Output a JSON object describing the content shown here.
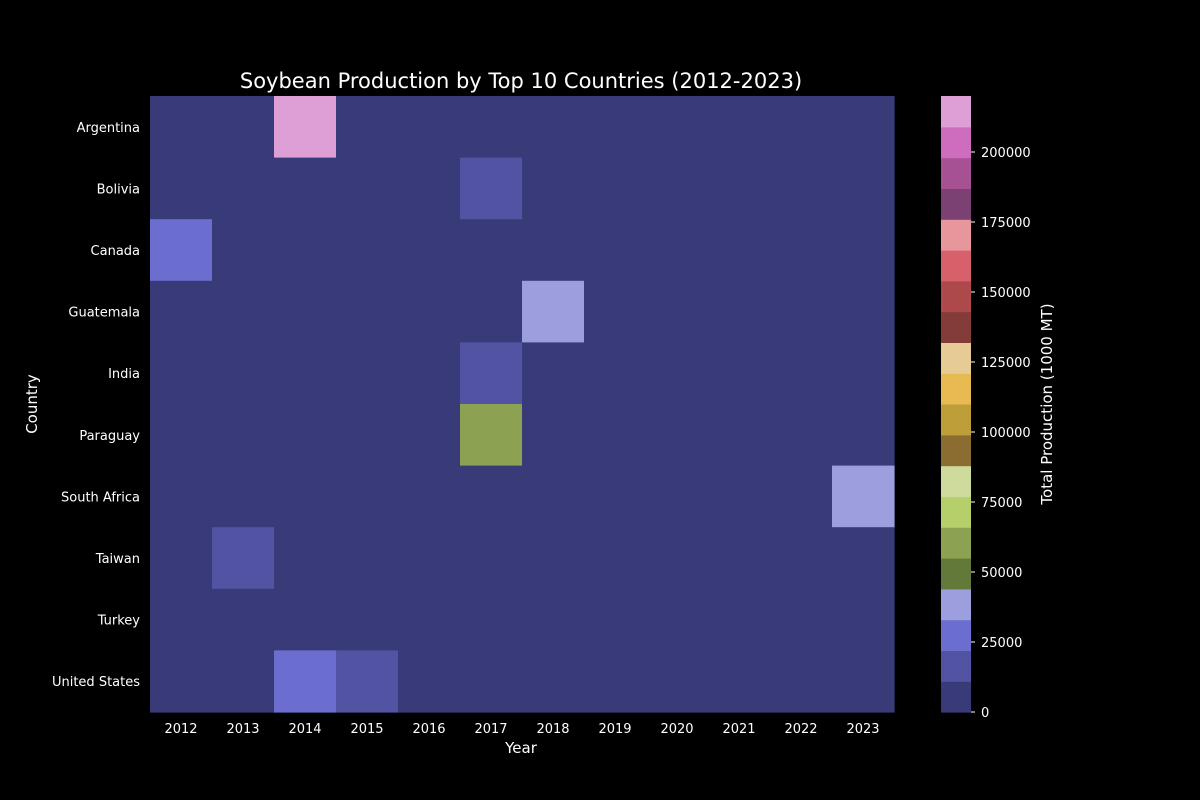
{
  "chart_data": {
    "type": "heatmap",
    "title": "Soybean Production by Top 10 Countries (2012-2023)",
    "xlabel": "Year",
    "ylabel": "Country",
    "colorbar_label": "Total Production (1000 MT)",
    "x": [
      "2012",
      "2013",
      "2014",
      "2015",
      "2016",
      "2017",
      "2018",
      "2019",
      "2020",
      "2021",
      "2022",
      "2023"
    ],
    "y": [
      "Argentina",
      "Bolivia",
      "Canada",
      "Guatemala",
      "India",
      "Paraguay",
      "South Africa",
      "Taiwan",
      "Turkey",
      "United States"
    ],
    "values": [
      [
        0,
        0,
        215000,
        0,
        0,
        0,
        0,
        0,
        0,
        0,
        0,
        0
      ],
      [
        0,
        0,
        0,
        0,
        0,
        15000,
        0,
        0,
        0,
        0,
        0,
        0
      ],
      [
        27000,
        0,
        0,
        0,
        0,
        0,
        0,
        0,
        0,
        0,
        0,
        0
      ],
      [
        0,
        0,
        0,
        0,
        0,
        0,
        38000,
        0,
        0,
        0,
        0,
        0
      ],
      [
        0,
        0,
        0,
        0,
        0,
        14000,
        0,
        0,
        0,
        0,
        0,
        0
      ],
      [
        0,
        0,
        0,
        0,
        0,
        60000,
        0,
        0,
        0,
        0,
        0,
        0
      ],
      [
        0,
        0,
        0,
        0,
        0,
        0,
        0,
        0,
        0,
        0,
        0,
        38000
      ],
      [
        0,
        15000,
        0,
        0,
        0,
        0,
        0,
        0,
        0,
        0,
        0,
        0
      ],
      [
        0,
        0,
        0,
        0,
        0,
        0,
        0,
        0,
        0,
        0,
        0,
        0
      ],
      [
        0,
        0,
        27000,
        15000,
        0,
        0,
        0,
        0,
        0,
        0,
        0,
        0
      ]
    ],
    "color_range": [
      0,
      220000
    ],
    "colorbar_ticks": [
      0,
      25000,
      50000,
      75000,
      100000,
      125000,
      150000,
      175000,
      200000
    ],
    "palette": [
      "#393b79",
      "#5254a3",
      "#6b6ecf",
      "#9c9ede",
      "#637939",
      "#8ca252",
      "#b5cf6b",
      "#cedb9c",
      "#8c6d31",
      "#bd9e39",
      "#e7ba52",
      "#e7cb94",
      "#843c39",
      "#ad494a",
      "#d6616b",
      "#e7969c",
      "#7b4173",
      "#a55194",
      "#ce6dbd",
      "#de9ed6"
    ],
    "grid": false,
    "legend": "right colorbar"
  }
}
